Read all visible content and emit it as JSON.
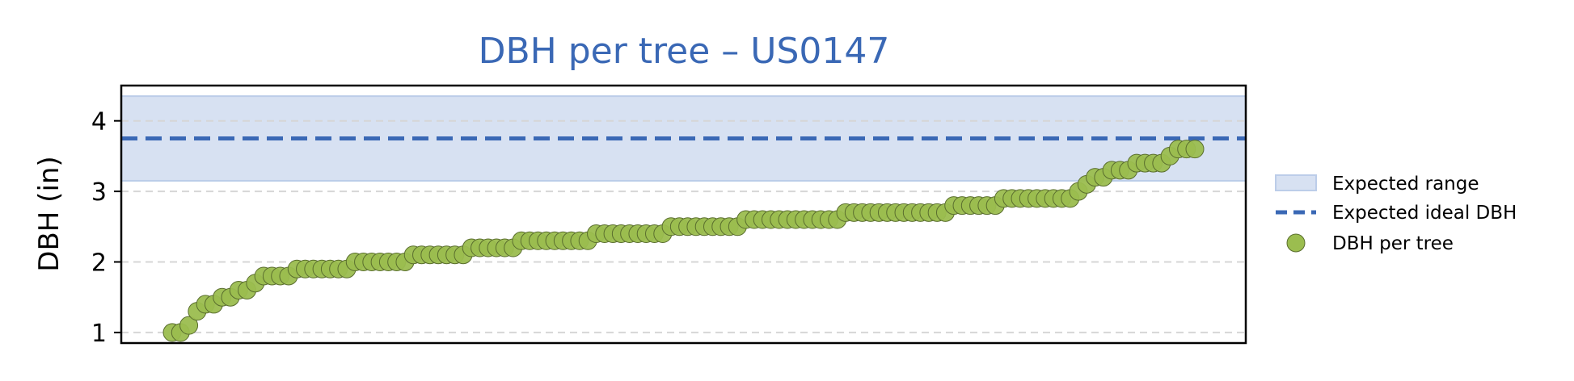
{
  "chart_data": {
    "type": "scatter",
    "title": "DBH per tree – US0147",
    "xlabel": "",
    "ylabel": "DBH (in)",
    "ylim": [
      0.85,
      4.5
    ],
    "yticks": [
      1,
      2,
      3,
      4
    ],
    "grid": "y-dashed",
    "legend_position": "right",
    "expected_range": {
      "label": "Expected range",
      "min": 3.15,
      "max": 4.35,
      "color": "#d7e1f2"
    },
    "ideal_line": {
      "label": "Expected ideal DBH",
      "value": 3.75,
      "color": "#3a68b5"
    },
    "series": [
      {
        "name": "DBH per tree",
        "color": "#9bbd4f",
        "values": [
          1.0,
          1.0,
          1.1,
          1.3,
          1.4,
          1.4,
          1.5,
          1.5,
          1.6,
          1.6,
          1.7,
          1.8,
          1.8,
          1.8,
          1.8,
          1.9,
          1.9,
          1.9,
          1.9,
          1.9,
          1.9,
          1.9,
          2.0,
          2.0,
          2.0,
          2.0,
          2.0,
          2.0,
          2.0,
          2.1,
          2.1,
          2.1,
          2.1,
          2.1,
          2.1,
          2.1,
          2.2,
          2.2,
          2.2,
          2.2,
          2.2,
          2.2,
          2.3,
          2.3,
          2.3,
          2.3,
          2.3,
          2.3,
          2.3,
          2.3,
          2.3,
          2.4,
          2.4,
          2.4,
          2.4,
          2.4,
          2.4,
          2.4,
          2.4,
          2.4,
          2.5,
          2.5,
          2.5,
          2.5,
          2.5,
          2.5,
          2.5,
          2.5,
          2.5,
          2.6,
          2.6,
          2.6,
          2.6,
          2.6,
          2.6,
          2.6,
          2.6,
          2.6,
          2.6,
          2.6,
          2.6,
          2.7,
          2.7,
          2.7,
          2.7,
          2.7,
          2.7,
          2.7,
          2.7,
          2.7,
          2.7,
          2.7,
          2.7,
          2.7,
          2.8,
          2.8,
          2.8,
          2.8,
          2.8,
          2.8,
          2.9,
          2.9,
          2.9,
          2.9,
          2.9,
          2.9,
          2.9,
          2.9,
          2.9,
          3.0,
          3.1,
          3.2,
          3.2,
          3.3,
          3.3,
          3.3,
          3.4,
          3.4,
          3.4,
          3.4,
          3.5,
          3.6,
          3.6,
          3.6
        ]
      }
    ]
  }
}
